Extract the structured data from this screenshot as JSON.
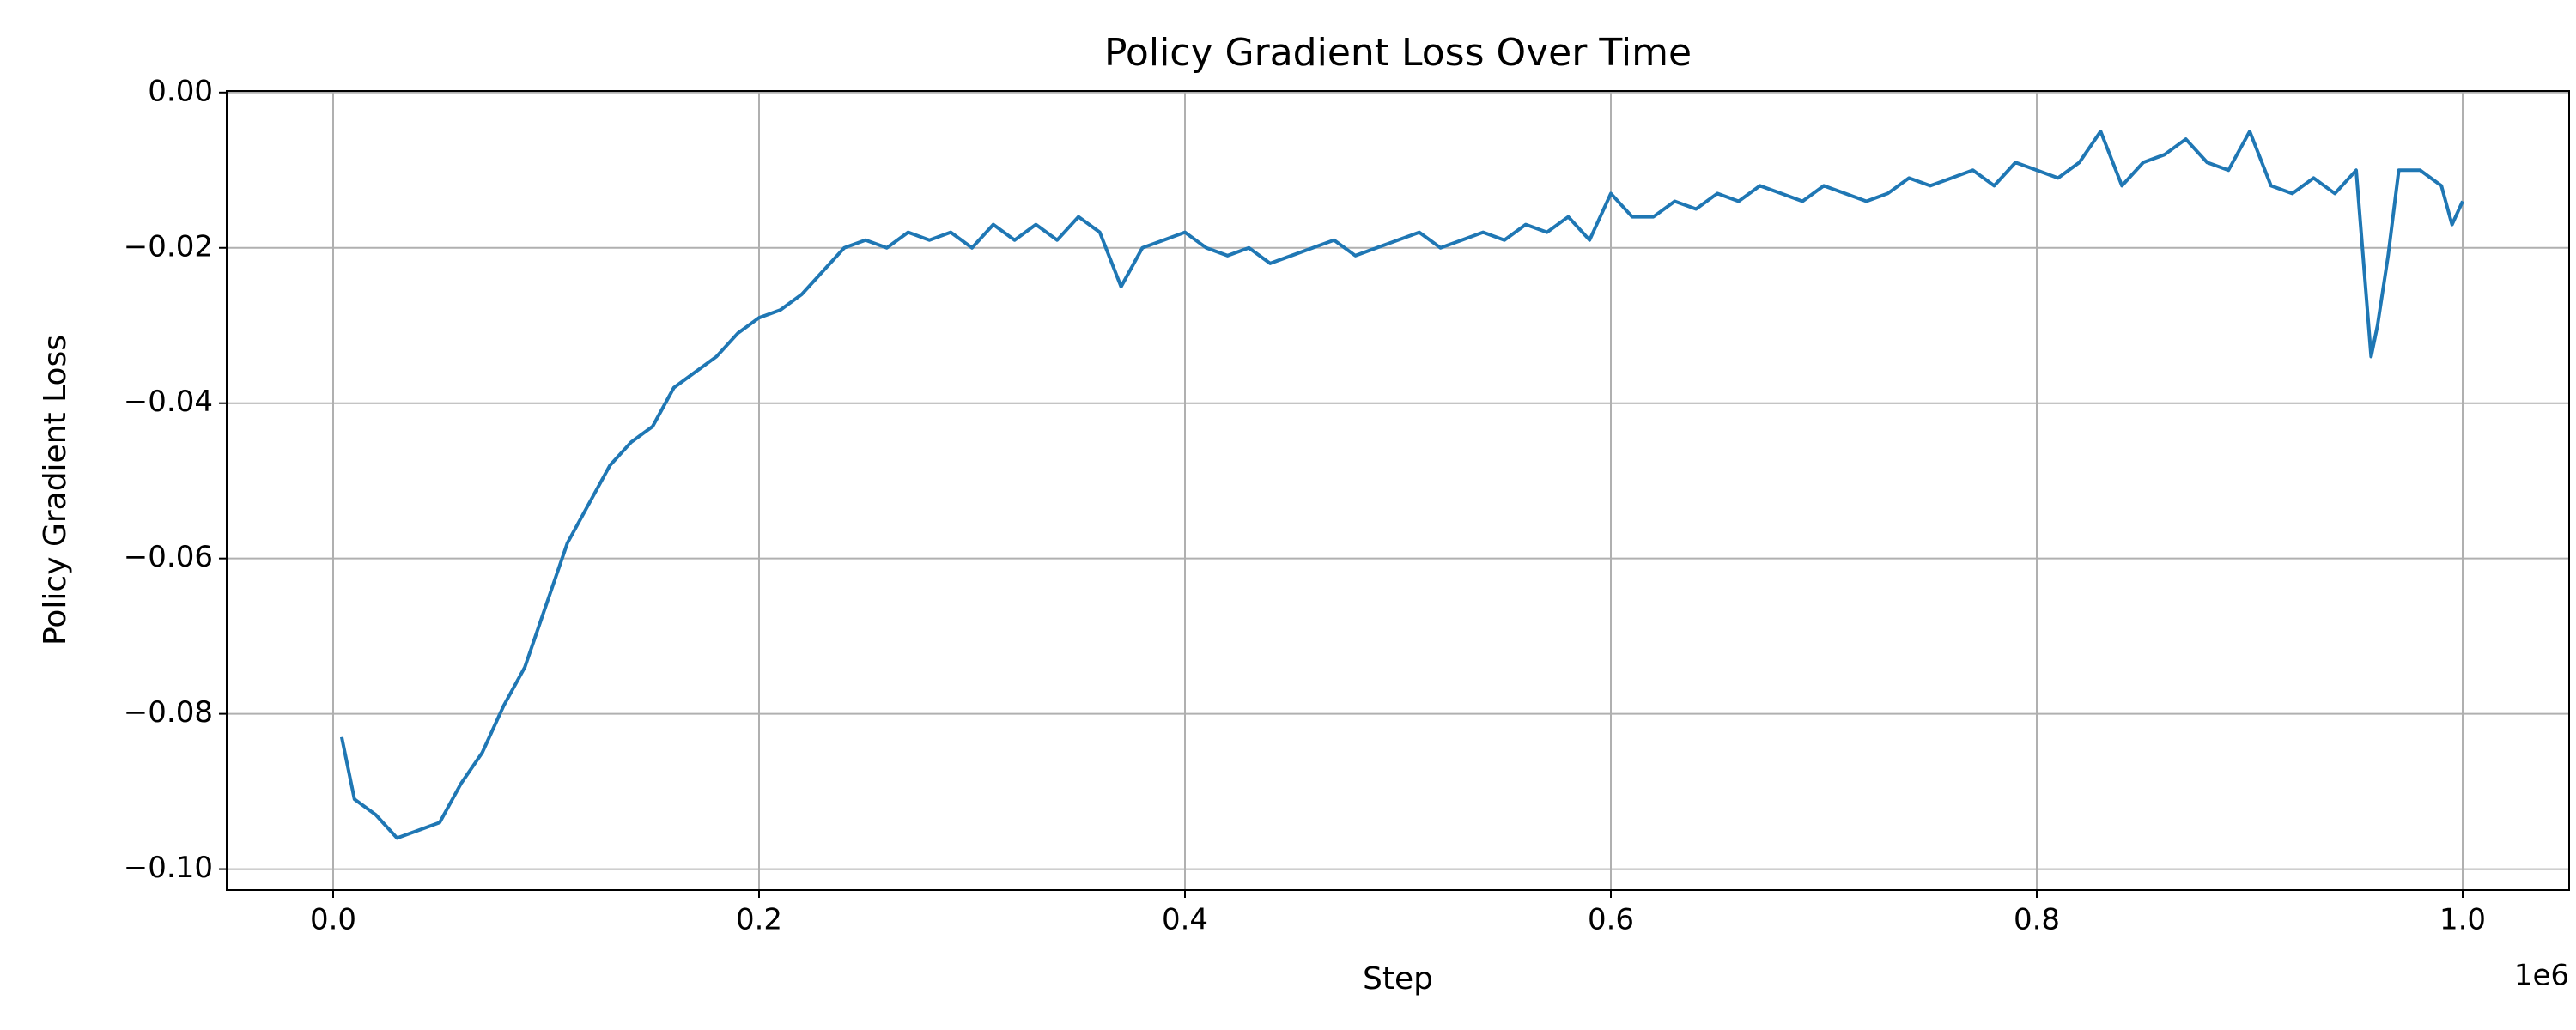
{
  "chart_data": {
    "type": "line",
    "title": "Policy Gradient Loss Over Time",
    "x_label": "Step",
    "y_label": "Policy Gradient Loss",
    "x_offset_label": "1e6",
    "grid": true,
    "xlim": [
      -50000,
      1050000
    ],
    "ylim": [
      -0.1027,
      0.0002
    ],
    "xticks": [
      {
        "value": 0,
        "label": "0.0"
      },
      {
        "value": 200000,
        "label": "0.2"
      },
      {
        "value": 400000,
        "label": "0.4"
      },
      {
        "value": 600000,
        "label": "0.6"
      },
      {
        "value": 800000,
        "label": "0.8"
      },
      {
        "value": 1000000,
        "label": "1.0"
      }
    ],
    "yticks": [
      {
        "value": -0.1,
        "label": "−0.10"
      },
      {
        "value": -0.08,
        "label": "−0.08"
      },
      {
        "value": -0.06,
        "label": "−0.06"
      },
      {
        "value": -0.04,
        "label": "−0.04"
      },
      {
        "value": -0.02,
        "label": "−0.02"
      },
      {
        "value": 0,
        "label": "0.00"
      }
    ],
    "x": [
      4000,
      10000,
      20000,
      30000,
      40000,
      50000,
      60000,
      70000,
      80000,
      90000,
      100000,
      110000,
      120000,
      130000,
      140000,
      150000,
      160000,
      170000,
      180000,
      190000,
      200000,
      210000,
      220000,
      230000,
      240000,
      250000,
      260000,
      270000,
      280000,
      290000,
      300000,
      310000,
      320000,
      330000,
      340000,
      350000,
      360000,
      370000,
      380000,
      390000,
      400000,
      410000,
      420000,
      430000,
      440000,
      450000,
      460000,
      470000,
      480000,
      490000,
      500000,
      510000,
      520000,
      530000,
      540000,
      550000,
      560000,
      570000,
      580000,
      590000,
      600000,
      610000,
      620000,
      630000,
      640000,
      650000,
      660000,
      670000,
      680000,
      690000,
      700000,
      710000,
      720000,
      730000,
      740000,
      750000,
      760000,
      770000,
      780000,
      790000,
      800000,
      810000,
      820000,
      830000,
      840000,
      850000,
      860000,
      870000,
      880000,
      890000,
      900000,
      910000,
      920000,
      930000,
      940000,
      950000,
      957000,
      960000,
      965000,
      970000,
      980000,
      990000,
      995000,
      1000000
    ],
    "series": [
      {
        "name": "Policy Gradient Loss",
        "color": "#1f77b4",
        "values": [
          -0.083,
          -0.091,
          -0.093,
          -0.096,
          -0.095,
          -0.094,
          -0.089,
          -0.085,
          -0.079,
          -0.074,
          -0.066,
          -0.058,
          -0.053,
          -0.048,
          -0.045,
          -0.043,
          -0.038,
          -0.036,
          -0.034,
          -0.031,
          -0.029,
          -0.028,
          -0.026,
          -0.023,
          -0.02,
          -0.019,
          -0.02,
          -0.018,
          -0.019,
          -0.018,
          -0.02,
          -0.017,
          -0.019,
          -0.017,
          -0.019,
          -0.016,
          -0.018,
          -0.025,
          -0.02,
          -0.019,
          -0.018,
          -0.02,
          -0.021,
          -0.02,
          -0.022,
          -0.021,
          -0.02,
          -0.019,
          -0.021,
          -0.02,
          -0.019,
          -0.018,
          -0.02,
          -0.019,
          -0.018,
          -0.019,
          -0.017,
          -0.018,
          -0.016,
          -0.019,
          -0.013,
          -0.016,
          -0.016,
          -0.014,
          -0.015,
          -0.013,
          -0.014,
          -0.012,
          -0.013,
          -0.014,
          -0.012,
          -0.013,
          -0.014,
          -0.013,
          -0.011,
          -0.012,
          -0.011,
          -0.01,
          -0.012,
          -0.009,
          -0.01,
          -0.011,
          -0.009,
          -0.005,
          -0.012,
          -0.009,
          -0.008,
          -0.006,
          -0.009,
          -0.01,
          -0.005,
          -0.012,
          -0.013,
          -0.011,
          -0.013,
          -0.01,
          -0.034,
          -0.03,
          -0.021,
          -0.01,
          -0.01,
          -0.012,
          -0.017,
          -0.014
        ]
      }
    ]
  }
}
